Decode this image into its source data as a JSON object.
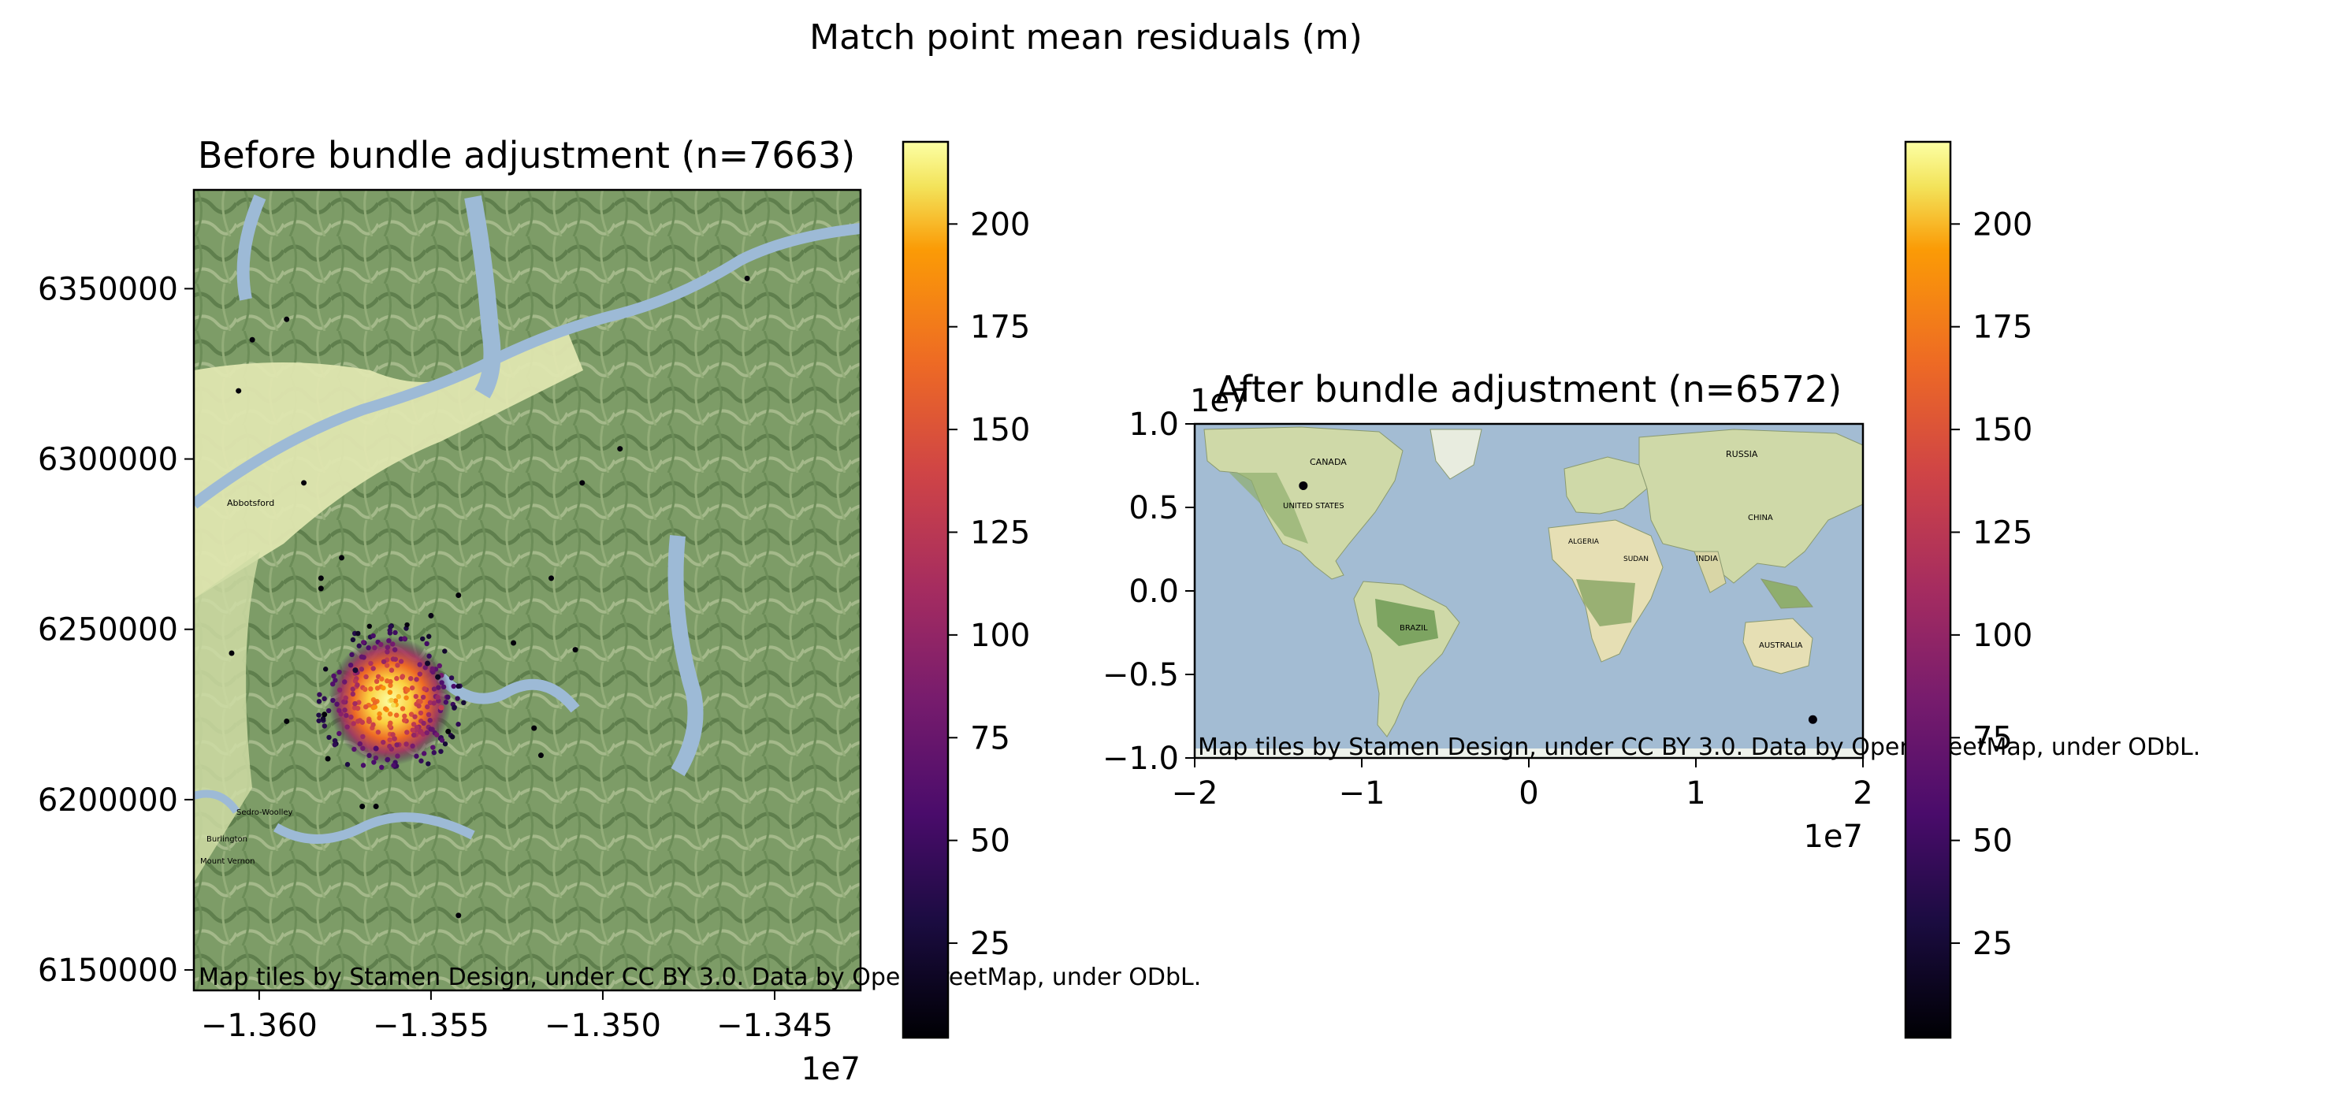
{
  "figure": {
    "suptitle": "Match point mean residuals (m)"
  },
  "colors": {
    "colormap": "inferno",
    "land_light": "#e6ebb4",
    "land_forest": "#7a9a64",
    "water": "#9dbad6",
    "ocean": "#a3bcd3"
  },
  "chart_data": [
    {
      "type": "scatter",
      "title": "Before bundle adjustment (n=7663)",
      "xlabel": "",
      "ylabel": "",
      "x_offset_label": "1e7",
      "xlim": [
        -1.3619,
        -1.3425
      ],
      "ylim": [
        6144000,
        6379000
      ],
      "x_ticks": [
        -1.36,
        -1.355,
        -1.35,
        -1.345
      ],
      "x_tick_labels": [
        "−1.360",
        "−1.355",
        "−1.350",
        "−1.345"
      ],
      "y_ticks": [
        6150000,
        6200000,
        6250000,
        6300000,
        6350000
      ],
      "y_tick_labels": [
        "6150000",
        "6200000",
        "6250000",
        "6300000",
        "6350000"
      ],
      "attribution": "Map tiles by Stamen Design, under CC BY 3.0. Data by OpenStreetMap, under ODbL.",
      "basemap": "terrain",
      "map_labels": [
        "Abbotsford",
        "Sedro-Woolley",
        "Burlington",
        "Mount Vernon"
      ],
      "cluster_center": [
        -1.3562,
        6229000
      ],
      "points": [
        {
          "x": -1.3602,
          "y": 6335000,
          "v": 5
        },
        {
          "x": -1.3606,
          "y": 6320000,
          "v": 5
        },
        {
          "x": -1.3587,
          "y": 6293000,
          "v": 5
        },
        {
          "x": -1.3495,
          "y": 6303000,
          "v": 5
        },
        {
          "x": -1.3506,
          "y": 6293000,
          "v": 5
        },
        {
          "x": -1.3458,
          "y": 6353000,
          "v": 5
        },
        {
          "x": -1.3592,
          "y": 6341000,
          "v": 5
        },
        {
          "x": -1.3582,
          "y": 6265000,
          "v": 5
        },
        {
          "x": -1.3576,
          "y": 6271000,
          "v": 5
        },
        {
          "x": -1.3582,
          "y": 6262000,
          "v": 5
        },
        {
          "x": -1.3608,
          "y": 6243000,
          "v": 5
        },
        {
          "x": -1.3542,
          "y": 6260000,
          "v": 5
        },
        {
          "x": -1.3515,
          "y": 6265000,
          "v": 5
        },
        {
          "x": -1.3526,
          "y": 6246000,
          "v": 5
        },
        {
          "x": -1.3581,
          "y": 6225000,
          "v": 5
        },
        {
          "x": -1.3592,
          "y": 6223000,
          "v": 5
        },
        {
          "x": -1.358,
          "y": 6212000,
          "v": 5
        },
        {
          "x": -1.357,
          "y": 6198000,
          "v": 5
        },
        {
          "x": -1.3566,
          "y": 6198000,
          "v": 5
        },
        {
          "x": -1.352,
          "y": 6221000,
          "v": 5
        },
        {
          "x": -1.3518,
          "y": 6213000,
          "v": 5
        },
        {
          "x": -1.3542,
          "y": 6166000,
          "v": 5
        },
        {
          "x": -1.3508,
          "y": 6244000,
          "v": 5
        },
        {
          "x": -1.3545,
          "y": 6220000,
          "v": 5
        },
        {
          "x": -1.355,
          "y": 6254000,
          "v": 10
        },
        {
          "x": -1.3551,
          "y": 6240000,
          "v": 20
        },
        {
          "x": -1.3572,
          "y": 6238000,
          "v": 25
        },
        {
          "x": -1.3548,
          "y": 6236000,
          "v": 15
        },
        {
          "x": -1.3553,
          "y": 6220000,
          "v": 110
        },
        {
          "x": -1.3547,
          "y": 6227000,
          "v": 130
        },
        {
          "x": -1.3568,
          "y": 6223000,
          "v": 140
        },
        {
          "x": -1.3566,
          "y": 6215000,
          "v": 60
        }
      ]
    },
    {
      "type": "scatter",
      "title": "After bundle adjustment (n=6572)",
      "xlabel": "",
      "ylabel": "",
      "x_offset_label": "1e7",
      "y_offset_label": "1e7",
      "xlim": [
        -2.0,
        2.0
      ],
      "ylim": [
        -1.0,
        1.0
      ],
      "x_ticks": [
        -2,
        -1,
        0,
        1,
        2
      ],
      "x_tick_labels": [
        "−2",
        "−1",
        "0",
        "1",
        "2"
      ],
      "y_ticks": [
        -1.0,
        -0.5,
        0.0,
        0.5,
        1.0
      ],
      "y_tick_labels": [
        "−1.0",
        "−0.5",
        "0.0",
        "0.5",
        "1.0"
      ],
      "attribution": "Map tiles by Stamen Design, under CC BY 3.0. Data by OpenStreetMap, under ODbL.",
      "basemap": "world",
      "map_labels": [
        "CANADA",
        "UNITED STATES",
        "BRAZIL",
        "RUSSIA",
        "CHINA",
        "INDIA",
        "AUSTRALIA",
        "ALGERIA",
        "SUDAN"
      ],
      "points": [
        {
          "x": -1.35,
          "y": 0.63,
          "v": 5
        },
        {
          "x": 1.7,
          "y": -0.77,
          "v": 5
        }
      ]
    }
  ],
  "colorbars": [
    {
      "ticks": [
        25,
        50,
        75,
        100,
        125,
        150,
        175,
        200
      ],
      "vmin": 2,
      "vmax": 220
    },
    {
      "ticks": [
        25,
        50,
        75,
        100,
        125,
        150,
        175,
        200
      ],
      "vmin": 2,
      "vmax": 220
    }
  ]
}
